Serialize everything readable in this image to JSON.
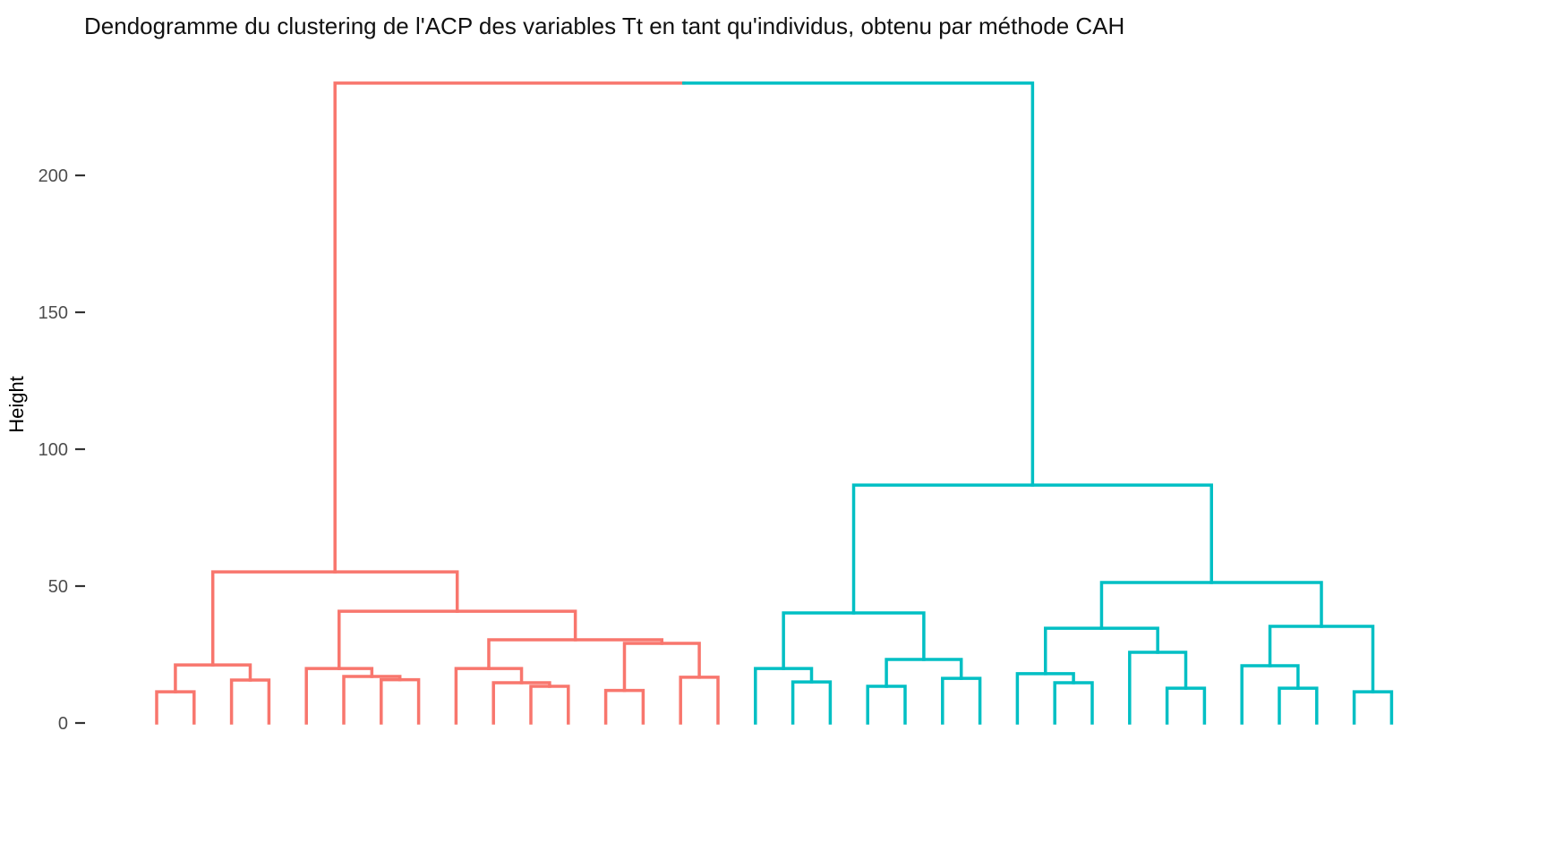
{
  "title": "Dendogramme du clustering de l'ACP des variables Tt en tant qu'individus, obtenu par méthode CAH",
  "chart_data": {
    "type": "dendrogram",
    "title": "Dendogramme du clustering de l'ACP des variables Tt en tant qu'individus, obtenu par méthode CAH",
    "ylabel": "Height",
    "y_ticks": [
      0,
      50,
      100,
      150,
      200
    ],
    "ylim": [
      0,
      240
    ],
    "grid": false,
    "legend": "none",
    "n_leaves": 34,
    "leaf_labels_visible": false,
    "clusters": [
      {
        "name": "cluster-1-left",
        "color": "#F8766D",
        "leaf_range": [
          1,
          16
        ]
      },
      {
        "name": "cluster-2-right",
        "color": "#00BFC4",
        "leaf_range": [
          17,
          34
        ]
      }
    ],
    "root_height": 233.7,
    "tree": {
      "h": 233.7,
      "split_colors": true,
      "children": [
        {
          "cluster": 0,
          "h": 55.2,
          "children": [
            {
              "h": 21.2,
              "children": [
                {
                  "h": 11.4,
                  "children": [
                    {
                      "leaf": 1
                    },
                    {
                      "leaf": 2
                    }
                  ]
                },
                {
                  "h": 15.7,
                  "children": [
                    {
                      "leaf": 3
                    },
                    {
                      "leaf": 4
                    }
                  ]
                }
              ]
            },
            {
              "h": 40.8,
              "children": [
                {
                  "h": 19.9,
                  "children": [
                    {
                      "leaf": 5
                    },
                    {
                      "h": 17.0,
                      "children": [
                        {
                          "leaf": 6
                        },
                        {
                          "h": 15.8,
                          "children": [
                            {
                              "leaf": 7
                            },
                            {
                              "leaf": 8
                            }
                          ]
                        }
                      ]
                    }
                  ]
                },
                {
                  "h": 30.4,
                  "children": [
                    {
                      "h": 19.9,
                      "children": [
                        {
                          "leaf": 9
                        },
                        {
                          "h": 14.7,
                          "children": [
                            {
                              "leaf": 10
                            },
                            {
                              "h": 13.4,
                              "children": [
                                {
                                  "leaf": 11
                                },
                                {
                                  "leaf": 12
                                }
                              ]
                            }
                          ]
                        }
                      ]
                    },
                    {
                      "h": 29.1,
                      "children": [
                        {
                          "h": 11.9,
                          "children": [
                            {
                              "leaf": 13
                            },
                            {
                              "leaf": 14
                            }
                          ]
                        },
                        {
                          "h": 16.7,
                          "children": [
                            {
                              "leaf": 15
                            },
                            {
                              "leaf": 16
                            }
                          ]
                        }
                      ]
                    }
                  ]
                }
              ]
            }
          ]
        },
        {
          "cluster": 1,
          "h": 86.9,
          "children": [
            {
              "h": 40.2,
              "children": [
                {
                  "h": 19.9,
                  "children": [
                    {
                      "leaf": 17
                    },
                    {
                      "h": 15.0,
                      "children": [
                        {
                          "leaf": 18
                        },
                        {
                          "leaf": 19
                        }
                      ]
                    }
                  ]
                },
                {
                  "h": 23.2,
                  "children": [
                    {
                      "h": 13.4,
                      "children": [
                        {
                          "leaf": 20
                        },
                        {
                          "leaf": 21
                        }
                      ]
                    },
                    {
                      "h": 16.3,
                      "children": [
                        {
                          "leaf": 22
                        },
                        {
                          "leaf": 23
                        }
                      ]
                    }
                  ]
                }
              ]
            },
            {
              "h": 51.3,
              "children": [
                {
                  "h": 34.6,
                  "children": [
                    {
                      "h": 18.0,
                      "children": [
                        {
                          "leaf": 24
                        },
                        {
                          "h": 14.7,
                          "children": [
                            {
                              "leaf": 25
                            },
                            {
                              "leaf": 26
                            }
                          ]
                        }
                      ]
                    },
                    {
                      "h": 25.8,
                      "children": [
                        {
                          "leaf": 27
                        },
                        {
                          "h": 12.7,
                          "children": [
                            {
                              "leaf": 28
                            },
                            {
                              "leaf": 29
                            }
                          ]
                        }
                      ]
                    }
                  ]
                },
                {
                  "h": 35.3,
                  "children": [
                    {
                      "h": 20.9,
                      "children": [
                        {
                          "leaf": 30
                        },
                        {
                          "h": 12.7,
                          "children": [
                            {
                              "leaf": 31
                            },
                            {
                              "leaf": 32
                            }
                          ]
                        }
                      ]
                    },
                    {
                      "h": 11.4,
                      "children": [
                        {
                          "leaf": 33
                        },
                        {
                          "leaf": 34
                        }
                      ]
                    }
                  ]
                }
              ]
            }
          ]
        }
      ]
    }
  }
}
